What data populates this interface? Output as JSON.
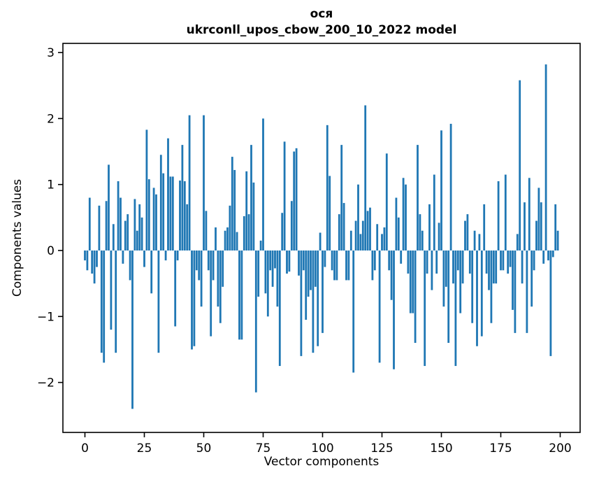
{
  "figure": {
    "title_line1": "ося",
    "title_line2": "ukrconll_upos_cbow_200_10_2022 model",
    "xlabel": "Vector components",
    "ylabel": "Components values"
  },
  "chart_data": {
    "type": "bar",
    "title": "ося\nukrconll_upos_cbow_200_10_2022 model",
    "xlabel": "Vector components",
    "ylabel": "Components values",
    "legend": "none",
    "grid": false,
    "bar_color": "#1f77b4",
    "spine_color": "#000000",
    "x_ticks": [
      0,
      25,
      50,
      75,
      100,
      125,
      150,
      175,
      200
    ],
    "y_ticks": [
      3,
      2,
      1,
      0,
      -1,
      -2
    ],
    "y_tick_labels": [
      "3",
      "2",
      "1",
      "0",
      "−1",
      "−2"
    ],
    "xlim": [
      -9.3,
      208.4
    ],
    "ylim": [
      -2.76,
      3.14
    ],
    "x_range": [
      0,
      199
    ],
    "n_components": 200,
    "values": [
      -0.15,
      -0.3,
      0.8,
      -0.35,
      -0.5,
      -0.25,
      0.68,
      -1.55,
      -1.7,
      0.75,
      1.3,
      -1.2,
      0.4,
      -1.55,
      1.05,
      0.8,
      -0.2,
      0.45,
      0.55,
      -0.45,
      -2.4,
      0.78,
      0.3,
      0.7,
      0.5,
      -0.25,
      1.83,
      1.08,
      -0.65,
      0.95,
      0.85,
      -1.55,
      1.45,
      1.17,
      -0.15,
      1.7,
      1.12,
      1.12,
      -1.15,
      -0.15,
      1.06,
      1.6,
      1.05,
      0.7,
      2.05,
      -1.5,
      -1.45,
      -0.3,
      -0.45,
      -0.85,
      2.05,
      0.6,
      -0.3,
      -1.3,
      -0.45,
      0.35,
      -0.85,
      -1.1,
      -0.55,
      0.3,
      0.35,
      0.68,
      1.42,
      1.22,
      0.28,
      -1.35,
      -1.35,
      0.52,
      1.2,
      0.55,
      1.6,
      1.03,
      -2.15,
      -0.7,
      0.15,
      2.0,
      -0.65,
      -1.0,
      -0.3,
      -0.55,
      -0.27,
      -0.85,
      -1.75,
      0.57,
      1.65,
      -0.35,
      -0.32,
      0.75,
      1.5,
      1.55,
      -0.38,
      -1.6,
      -0.3,
      -1.05,
      -0.7,
      -0.6,
      -1.55,
      -0.55,
      -1.45,
      0.27,
      -1.25,
      -0.25,
      1.9,
      1.13,
      -0.3,
      -0.45,
      -0.45,
      0.55,
      1.6,
      0.72,
      -0.45,
      -0.45,
      0.3,
      -1.85,
      0.45,
      1.0,
      0.25,
      0.45,
      2.2,
      0.6,
      0.65,
      -0.45,
      -0.3,
      0.4,
      -1.7,
      0.25,
      0.35,
      1.47,
      -0.3,
      -0.75,
      -1.8,
      0.8,
      0.5,
      -0.2,
      1.1,
      1.0,
      -0.35,
      -0.95,
      -0.95,
      -1.4,
      1.6,
      0.55,
      0.3,
      -1.75,
      -0.35,
      0.7,
      -0.6,
      1.15,
      -0.35,
      0.42,
      1.82,
      -0.85,
      -0.55,
      -1.4,
      1.92,
      -0.5,
      -1.75,
      -0.3,
      -0.95,
      -0.5,
      0.45,
      0.55,
      -0.35,
      -1.1,
      0.3,
      -1.45,
      0.25,
      -1.3,
      0.7,
      -0.35,
      -0.6,
      -1.1,
      -0.5,
      -0.5,
      1.05,
      -0.3,
      -0.3,
      1.15,
      -0.35,
      -0.25,
      -0.9,
      -1.25,
      0.25,
      2.58,
      -0.5,
      0.73,
      -1.25,
      1.1,
      -0.85,
      -0.3,
      0.45,
      0.95,
      0.73,
      -0.2,
      2.82,
      -0.15,
      -1.6,
      -0.1,
      0.7,
      0.3
    ]
  }
}
